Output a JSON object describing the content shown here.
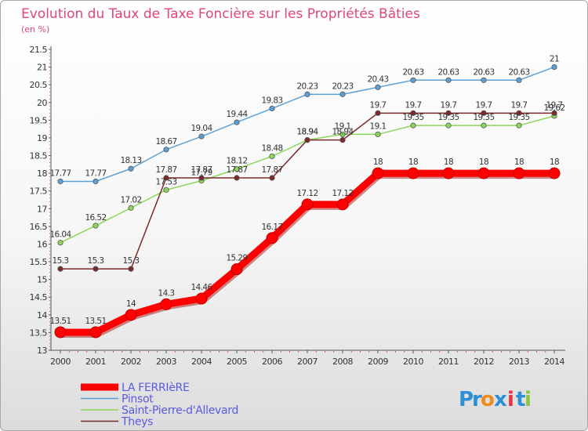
{
  "chart_data": {
    "type": "line",
    "title": "Evolution du Taux de Taxe Foncière sur les Propriétés Bâties",
    "unit_label": "(en %)",
    "xlabel": "",
    "ylabel": "",
    "x": [
      "2000",
      "2001",
      "2002",
      "2003",
      "2004",
      "2005",
      "2006",
      "2007",
      "2008",
      "2009",
      "2010",
      "2011",
      "2012",
      "2013",
      "2014"
    ],
    "ylim": [
      13,
      21.5
    ],
    "yticks": [
      "13",
      "13.5",
      "14",
      "14.5",
      "15",
      "15.5",
      "16",
      "16.5",
      "17",
      "17.5",
      "18",
      "18.5",
      "19",
      "19.5",
      "20",
      "20.5",
      "21",
      "21.5"
    ],
    "grid": false,
    "legend_position": "bottom-left",
    "series": [
      {
        "name": "LA FERRIèRE",
        "color": "#ff0000",
        "values": [
          13.51,
          13.51,
          14,
          14.3,
          14.46,
          15.29,
          16.17,
          17.12,
          17.12,
          18,
          18,
          18,
          18,
          18,
          18
        ],
        "labels": [
          "13.51",
          "13.51",
          "14",
          "14.3",
          "14.46",
          "15.29",
          "16.17",
          "17.12",
          "17.12",
          "18",
          "18",
          "18",
          "18",
          "18",
          "18"
        ]
      },
      {
        "name": "Pinsot",
        "color": "#5ba1d8",
        "values": [
          17.77,
          17.77,
          18.13,
          18.67,
          19.04,
          19.44,
          19.83,
          20.23,
          20.23,
          20.43,
          20.63,
          20.63,
          20.63,
          20.63,
          21
        ],
        "labels": [
          "17.77",
          "17.77",
          "18.13",
          "18.67",
          "19.04",
          "19.44",
          "19.83",
          "20.23",
          "20.23",
          "20.43",
          "20.63",
          "20.63",
          "20.63",
          "20.63",
          "21"
        ]
      },
      {
        "name": "Saint-Pierre-d'Allevard",
        "color": "#8cd65a",
        "values": [
          16.04,
          16.52,
          17.02,
          17.53,
          17.79,
          18.12,
          18.48,
          18.94,
          19.1,
          19.1,
          19.35,
          19.35,
          19.35,
          19.35,
          19.62
        ],
        "labels": [
          "16.04",
          "16.52",
          "17.02",
          "17.53",
          "17.79",
          "18.12",
          "18.48",
          "18.94",
          "19.1",
          "19.1",
          "19.35",
          "19.35",
          "19.35",
          "19.35",
          "19.62"
        ]
      },
      {
        "name": "Theys",
        "color": "#7a2a2a",
        "values": [
          15.3,
          15.3,
          15.3,
          17.87,
          17.87,
          17.87,
          17.87,
          18.94,
          18.94,
          19.7,
          19.7,
          19.7,
          19.7,
          19.7,
          19.7
        ],
        "labels": [
          "15.3",
          "15.3",
          "15.3",
          "17.87",
          "17.87",
          "17.87",
          "17.87",
          "18.94",
          "18.94",
          "19.7",
          "19.7",
          "19.7",
          "19.7",
          "19.7",
          "19.7"
        ]
      }
    ]
  },
  "logo": {
    "text": "Proxiti",
    "letters": [
      "P",
      "r",
      "o",
      "x",
      "i",
      "t",
      "i"
    ],
    "colors": [
      "#2e8fd6",
      "#2e8fd6",
      "#f08a1c",
      "#2e8fd6",
      "#e8323c",
      "#2e8fd6",
      "#8cc63f"
    ]
  }
}
